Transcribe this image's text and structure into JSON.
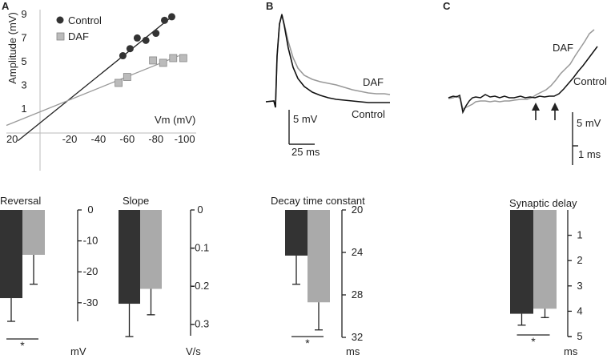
{
  "panels": {
    "a": "A",
    "b": "B",
    "c": "C"
  },
  "colors": {
    "control": "#333333",
    "daf": "#aaaaaa",
    "daf_marker": "#bbbbbb"
  },
  "chart_data": [
    {
      "id": "A_iv",
      "type": "scatter",
      "ylabel": "Amplitude (mV)",
      "xlabel": "Vm (mV)",
      "x_ticks": [
        "20",
        "-20",
        "-40",
        "-60",
        "-80",
        "-100"
      ],
      "x_tick_values": [
        20,
        -20,
        -40,
        -60,
        -80,
        -100
      ],
      "y_ticks": [
        "1",
        "3",
        "5",
        "7",
        "9"
      ],
      "y_tick_values": [
        1,
        3,
        5,
        7,
        9
      ],
      "xlim": [
        24,
        -108
      ],
      "ylim": [
        -2.4,
        9.2
      ],
      "legend": [
        "Control",
        "DAF"
      ],
      "series": [
        {
          "name": "Control",
          "points": [
            [
              -57,
              5.5
            ],
            [
              -62,
              6.1
            ],
            [
              -67,
              7.0
            ],
            [
              -73,
              6.8
            ],
            [
              -80,
              7.4
            ],
            [
              -86,
              8.5
            ],
            [
              -91,
              8.8
            ]
          ],
          "fit": [
            [
              16,
              -1.7
            ],
            [
              -91,
              8.8
            ]
          ]
        },
        {
          "name": "DAF",
          "points": [
            [
              -54,
              3.2
            ],
            [
              -60,
              3.7
            ],
            [
              -78,
              5.1
            ],
            [
              -85,
              4.9
            ],
            [
              -92,
              5.3
            ],
            [
              -99,
              5.3
            ]
          ],
          "fit": [
            [
              24,
              -0.4
            ],
            [
              -96,
              5.5
            ]
          ]
        }
      ]
    },
    {
      "id": "B_traces",
      "type": "line",
      "labels": [
        "DAF",
        "Control"
      ],
      "scalebar_y": "5 mV",
      "scalebar_x": "25 ms"
    },
    {
      "id": "C_traces",
      "type": "line",
      "labels": [
        "DAF",
        "Control"
      ],
      "scalebar_y": "5 mV",
      "scalebar_x": "1 ms"
    },
    {
      "id": "reversal",
      "type": "bar",
      "title": "Reversal",
      "unit": "mV",
      "ylim": [
        0,
        -36
      ],
      "y_ticks": [
        "0",
        "-10",
        "-20",
        "-30"
      ],
      "y_tick_values": [
        0,
        -10,
        -20,
        -30
      ],
      "categories": [
        "Control",
        "DAF"
      ],
      "values": [
        -28.5,
        -14.5
      ],
      "errors": [
        7.5,
        9.5
      ],
      "significance": "*"
    },
    {
      "id": "slope",
      "type": "bar",
      "title": "Slope",
      "unit": "V/s",
      "ylim": [
        0,
        -0.33
      ],
      "y_ticks": [
        "0",
        "-0.1",
        "-0.2",
        "-0.3"
      ],
      "y_tick_values": [
        0,
        -0.1,
        -0.2,
        -0.3
      ],
      "categories": [
        "Control",
        "DAF"
      ],
      "values": [
        -0.246,
        -0.207
      ],
      "errors": [
        0.086,
        0.068
      ],
      "significance": ""
    },
    {
      "id": "decay",
      "type": "bar",
      "title": "Decay time constant",
      "unit": "ms",
      "ylim": [
        20,
        32
      ],
      "y_ticks": [
        "20",
        "24",
        "28",
        "32"
      ],
      "y_tick_values": [
        20,
        24,
        28,
        32
      ],
      "categories": [
        "Control",
        "DAF"
      ],
      "values": [
        24.3,
        28.7
      ],
      "errors": [
        2.7,
        2.6
      ],
      "significance": "*"
    },
    {
      "id": "delay",
      "type": "bar",
      "title": "Synaptic delay",
      "unit": "ms",
      "ylim": [
        0,
        5
      ],
      "y_ticks": [
        "1",
        "2",
        "3",
        "4",
        "5"
      ],
      "y_tick_values": [
        1,
        2,
        3,
        4,
        5
      ],
      "categories": [
        "Control",
        "DAF"
      ],
      "values": [
        4.1,
        3.9
      ],
      "errors": [
        0.45,
        0.35
      ],
      "significance": "*"
    }
  ]
}
